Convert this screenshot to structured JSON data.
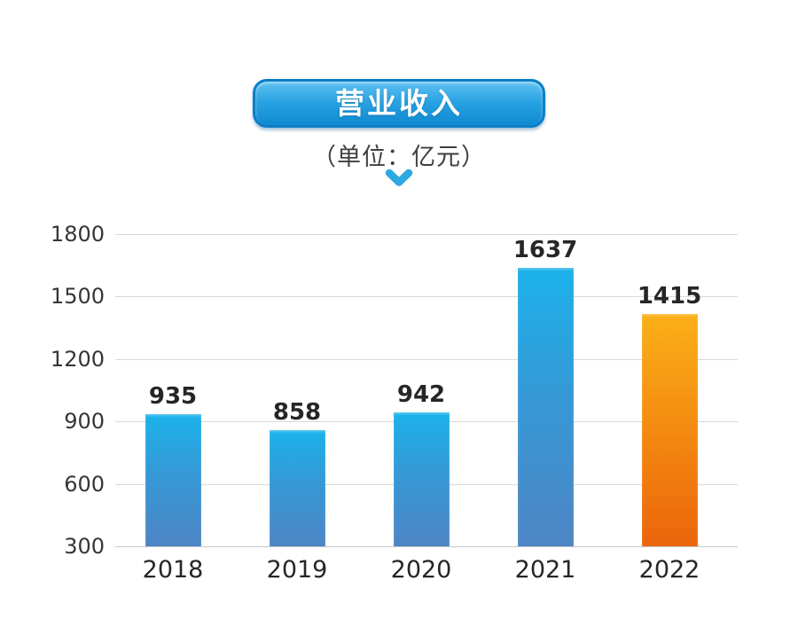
{
  "header": {
    "title": "营业收入",
    "unit": "（单位：亿元）",
    "arrow_icon": "chevron-down-icon"
  },
  "colors": {
    "badge_top": "#5ec1f2",
    "badge_mid": "#28a2e2",
    "badge_bottom": "#0e8ad2",
    "badge_border": "#0d7ec6",
    "arrow": "#2ca9e1",
    "bar_blue_top": "#1cb2ea",
    "bar_blue_mid": "#3599d6",
    "bar_blue_bottom": "#4e85c5",
    "bar_orange_top": "#fbb017",
    "bar_orange_bottom": "#ec650b",
    "grid": "#d8d8d8",
    "grid_baseline": "#c6c6c6",
    "axis_text": "#363636",
    "label_text": "#262626"
  },
  "chart_data": {
    "type": "bar",
    "title": "营业收入",
    "unit_note": "（单位：亿元）",
    "categories": [
      "2018",
      "2019",
      "2020",
      "2021",
      "2022"
    ],
    "values": [
      935,
      858,
      942,
      1637,
      1415
    ],
    "bar_colors": [
      "blue",
      "blue",
      "blue",
      "blue",
      "orange"
    ],
    "ylim": [
      300,
      1800
    ],
    "yticks": [
      300,
      600,
      900,
      1200,
      1500,
      1800
    ],
    "xlabel": "",
    "ylabel": "",
    "grid": true,
    "legend": false
  }
}
